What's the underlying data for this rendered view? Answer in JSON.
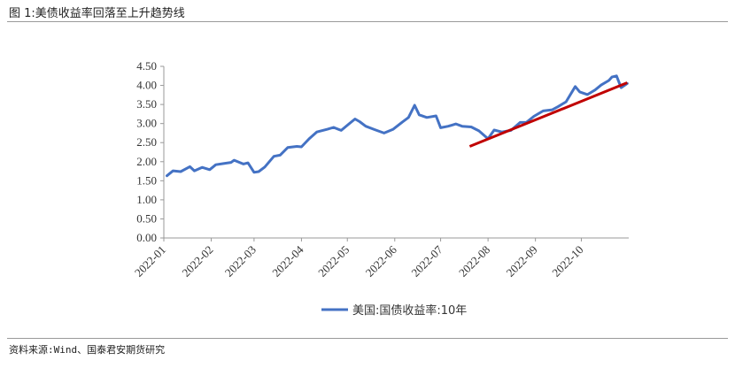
{
  "figure_title": "图 1:美债收益率回落至上升趋势线",
  "source_note": "资料来源:Wind、国泰君安期货研究",
  "chart_data": {
    "type": "line",
    "title": "",
    "xlabel": "",
    "ylabel": "",
    "ylim": [
      0,
      4.5
    ],
    "yticks": [
      "4.50",
      "4.00",
      "3.50",
      "3.00",
      "2.50",
      "2.00",
      "1.50",
      "1.00",
      "0.50",
      "0.00"
    ],
    "xticks": [
      "2022-01",
      "2022-02",
      "2022-03",
      "2022-04",
      "2022-05",
      "2022-06",
      "2022-07",
      "2022-08",
      "2022-09",
      "2022-10"
    ],
    "grid": false,
    "legend_position": "bottom",
    "series": [
      {
        "name": "美国:国债收益率:10年",
        "color": "#4472C4",
        "x": [
          "2022-01-03",
          "2022-01-07",
          "2022-01-12",
          "2022-01-18",
          "2022-01-21",
          "2022-01-26",
          "2022-01-31",
          "2022-02-04",
          "2022-02-09",
          "2022-02-14",
          "2022-02-16",
          "2022-02-22",
          "2022-02-25",
          "2022-03-01",
          "2022-03-04",
          "2022-03-08",
          "2022-03-14",
          "2022-03-18",
          "2022-03-23",
          "2022-03-29",
          "2022-04-01",
          "2022-04-06",
          "2022-04-11",
          "2022-04-18",
          "2022-04-22",
          "2022-04-27",
          "2022-05-02",
          "2022-05-06",
          "2022-05-09",
          "2022-05-13",
          "2022-05-19",
          "2022-05-25",
          "2022-05-31",
          "2022-06-06",
          "2022-06-10",
          "2022-06-14",
          "2022-06-17",
          "2022-06-22",
          "2022-06-28",
          "2022-07-01",
          "2022-07-06",
          "2022-07-11",
          "2022-07-15",
          "2022-07-21",
          "2022-07-26",
          "2022-08-01",
          "2022-08-05",
          "2022-08-10",
          "2022-08-16",
          "2022-08-22",
          "2022-08-26",
          "2022-08-31",
          "2022-09-06",
          "2022-09-12",
          "2022-09-16",
          "2022-09-21",
          "2022-09-27",
          "2022-09-30",
          "2022-10-05",
          "2022-10-10",
          "2022-10-14",
          "2022-10-19",
          "2022-10-21",
          "2022-10-24",
          "2022-10-27",
          "2022-10-31"
        ],
        "y": [
          1.63,
          1.76,
          1.74,
          1.87,
          1.76,
          1.85,
          1.79,
          1.92,
          1.95,
          1.98,
          2.04,
          1.94,
          1.97,
          1.72,
          1.74,
          1.86,
          2.14,
          2.17,
          2.37,
          2.4,
          2.39,
          2.6,
          2.78,
          2.85,
          2.9,
          2.82,
          2.99,
          3.12,
          3.05,
          2.93,
          2.84,
          2.75,
          2.85,
          3.04,
          3.16,
          3.48,
          3.23,
          3.16,
          3.2,
          2.89,
          2.93,
          2.99,
          2.93,
          2.91,
          2.81,
          2.6,
          2.83,
          2.78,
          2.82,
          3.03,
          3.03,
          3.19,
          3.33,
          3.36,
          3.45,
          3.57,
          3.97,
          3.83,
          3.76,
          3.88,
          4.01,
          4.13,
          4.22,
          4.25,
          3.94,
          4.05
        ]
      }
    ],
    "annotations": [
      {
        "type": "trend_line",
        "color": "#C00000",
        "x": [
          "2022-07-20",
          "2022-10-31"
        ],
        "y": [
          2.4,
          4.07
        ]
      }
    ]
  }
}
